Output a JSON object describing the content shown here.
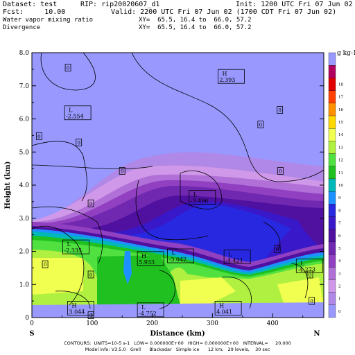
{
  "header": {
    "dataset": "Dataset: test",
    "rip": "RIP: rip20020607_d1",
    "init": "Init: 1200 UTC Fri 07 Jun 02",
    "fcst": "Fcst:     10.00",
    "valid": "Valid: 2200 UTC Fri 07 Jun 02 (1700 CDT Fri 07 Jun 02)",
    "field1": "Water vapor mixing ratio",
    "field1_xy": "XY=  65.5, 16.4 to  66.0, 57.2",
    "field2": "Divergence",
    "field2_xy": "XY=  65.5, 16.4 to  66.0, 57.2"
  },
  "chart_data": {
    "type": "contour",
    "xlabel": "Distance (km)",
    "ylabel": "Height (km)",
    "xlim": [
      0,
      485
    ],
    "ylim": [
      0,
      8.0
    ],
    "x_ticks": [
      0,
      100,
      200,
      300,
      400
    ],
    "y_ticks": [
      "0",
      "1.0",
      "2.0",
      "3.0",
      "4.0",
      "5.0",
      "6.0",
      "7.0",
      "8.0"
    ],
    "x_ends": {
      "left": "S",
      "right": "N"
    },
    "colorbar": {
      "unit_label": "g kg-1",
      "values": [
        "0",
        "1",
        "2",
        "3",
        "4",
        "5",
        "6",
        "7",
        "8",
        "9",
        "10",
        "11",
        "12",
        "13",
        "14",
        "15",
        "16",
        "17",
        "18"
      ],
      "colors": [
        "#9898ff",
        "#b088e8",
        "#d098e8",
        "#b070d8",
        "#9040c0",
        "#7028b0",
        "#5010a0",
        "#3818c8",
        "#2828e0",
        "#1e90ff",
        "#00b8b8",
        "#20c020",
        "#50e040",
        "#b0f040",
        "#f0ff50",
        "#ffd800",
        "#ff9000",
        "#ff4000",
        "#e00000",
        "#b00060",
        "#9898ff"
      ]
    },
    "labels": [
      {
        "text": "H",
        "value": "2.393",
        "x": 330,
        "y": 7.2
      },
      {
        "text": "L",
        "value": "-2.554",
        "x": 75,
        "y": 6.1
      },
      {
        "text": "L",
        "value": "-3.496",
        "x": 282,
        "y": 3.55
      },
      {
        "text": "L",
        "value": "-2.335",
        "x": 72,
        "y": 2.05
      },
      {
        "text": "L",
        "value": "-3.042",
        "x": 246,
        "y": 1.78
      },
      {
        "text": "H",
        "value": "5.933",
        "x": 196,
        "y": 1.7
      },
      {
        "text": "L",
        "value": "-4.421",
        "x": 340,
        "y": 1.75
      },
      {
        "text": "L",
        "value": "-4.273",
        "x": 460,
        "y": 1.48
      },
      {
        "text": "H",
        "value": "3.044",
        "x": 80,
        "y": 0.2
      },
      {
        "text": "L",
        "value": "-4.752",
        "x": 196,
        "y": 0.15
      },
      {
        "text": "H",
        "value": "4.041",
        "x": 325,
        "y": 0.2
      }
    ],
    "zero_labels": [
      {
        "x": 60,
        "y": 7.55
      },
      {
        "x": 12,
        "y": 5.48
      },
      {
        "x": 78,
        "y": 5.29
      },
      {
        "x": 150,
        "y": 4.43
      },
      {
        "x": 98,
        "y": 3.45
      },
      {
        "x": 380,
        "y": 5.83
      },
      {
        "x": 412,
        "y": 6.27
      },
      {
        "x": 413,
        "y": 4.43
      },
      {
        "x": 408,
        "y": 2.07
      },
      {
        "x": 22,
        "y": 1.61
      },
      {
        "x": 98,
        "y": 1.3
      },
      {
        "x": 98,
        "y": 0.07
      },
      {
        "x": 462,
        "y": 1.3
      },
      {
        "x": 465,
        "y": 0.5
      }
    ],
    "footer": {
      "contours": "CONTOURS:  UNITS=10-5 s-1   LOW= 0.000000E+00   HIGH= 0.000000E+00   INTERVAL=     20.000",
      "model": "Model info: V3.5.0   Grell      Blackadar   Simple ice      12 km,   29 levels,    30 sec"
    }
  }
}
